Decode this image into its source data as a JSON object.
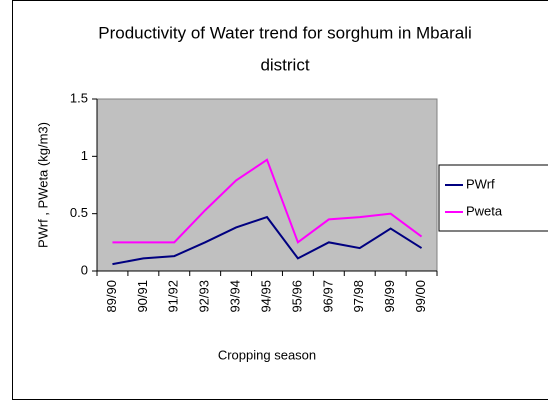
{
  "chart_data": {
    "type": "line",
    "title": [
      "Productivity of Water trend for sorghum in Mbarali",
      "district"
    ],
    "x_label": "Cropping season",
    "y_label": "PWrf , PWeta (kg/m3)",
    "categories": [
      "89/90",
      "90/91",
      "91/92",
      "92/93",
      "93/94",
      "94/95",
      "95/96",
      "96/97",
      "97/98",
      "98/99",
      "99/00"
    ],
    "series": [
      {
        "name": "PWrf",
        "color": "#000080",
        "values": [
          0.06,
          0.11,
          0.13,
          0.25,
          0.38,
          0.47,
          0.11,
          0.25,
          0.2,
          0.37,
          0.2
        ]
      },
      {
        "name": "Pweta",
        "color": "#ff00ff",
        "values": [
          0.25,
          0.25,
          0.25,
          0.53,
          0.79,
          0.97,
          0.25,
          0.45,
          0.47,
          0.5,
          0.3
        ]
      }
    ],
    "ylim": [
      0,
      1.5
    ],
    "yticks": [
      0,
      0.5,
      1,
      1.5
    ],
    "plot_background": "#c0c0c0",
    "legend": "right"
  }
}
